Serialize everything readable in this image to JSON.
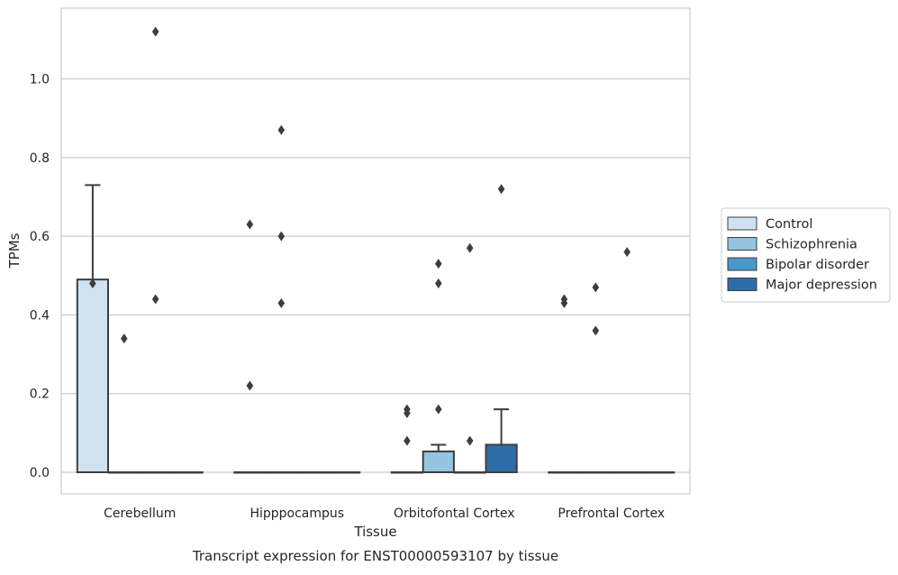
{
  "chart_data": {
    "type": "box",
    "xlabel": "Tissue",
    "ylabel": "TPMs",
    "caption": "Transcript expression for ENST00000593107 by tissue",
    "ylim": [
      -0.055,
      1.18
    ],
    "yticks": [
      0.0,
      0.2,
      0.4,
      0.6,
      0.8,
      1.0
    ],
    "ytick_labels": [
      "0.0",
      "0.2",
      "0.4",
      "0.6",
      "0.8",
      "1.0"
    ],
    "grid": "horizontal",
    "legend_position": "right",
    "categories": [
      "Cerebellum",
      "Hipppocampus",
      "Orbitofontal Cortex",
      "Prefrontal Cortex"
    ],
    "series": [
      {
        "name": "Control",
        "color": "#d0e1f2",
        "boxes": [
          {
            "q1": 0,
            "median": 0,
            "q3": 0.49,
            "whisker_low": 0,
            "whisker_high": 0.73,
            "outliers": [
              0.48
            ]
          },
          {
            "q1": 0,
            "median": 0,
            "q3": 0,
            "whisker_low": 0,
            "whisker_high": 0,
            "outliers": [
              0.63,
              0.22
            ]
          },
          {
            "q1": 0,
            "median": 0,
            "q3": 0,
            "whisker_low": 0,
            "whisker_high": 0,
            "outliers": [
              0.16,
              0.15,
              0.08
            ]
          },
          {
            "q1": 0,
            "median": 0,
            "q3": 0,
            "whisker_low": 0,
            "whisker_high": 0,
            "outliers": [
              0.44,
              0.43
            ]
          }
        ]
      },
      {
        "name": "Schizophrenia",
        "color": "#94c4df",
        "boxes": [
          {
            "q1": 0,
            "median": 0,
            "q3": 0,
            "whisker_low": 0,
            "whisker_high": 0,
            "outliers": [
              0.34
            ]
          },
          {
            "q1": 0,
            "median": 0,
            "q3": 0,
            "whisker_low": 0,
            "whisker_high": 0,
            "outliers": [
              0.87,
              0.6,
              0.43
            ]
          },
          {
            "q1": 0,
            "median": 0,
            "q3": 0.053,
            "whisker_low": 0,
            "whisker_high": 0.07,
            "outliers": [
              0.53,
              0.48,
              0.16
            ]
          },
          {
            "q1": 0,
            "median": 0,
            "q3": 0,
            "whisker_low": 0,
            "whisker_high": 0,
            "outliers": [
              0.47,
              0.36
            ]
          }
        ]
      },
      {
        "name": "Bipolar disorder",
        "color": "#4a98c9",
        "boxes": [
          {
            "q1": 0,
            "median": 0,
            "q3": 0,
            "whisker_low": 0,
            "whisker_high": 0,
            "outliers": [
              1.12,
              0.44
            ]
          },
          {
            "q1": 0,
            "median": 0,
            "q3": 0,
            "whisker_low": 0,
            "whisker_high": 0,
            "outliers": []
          },
          {
            "q1": 0,
            "median": 0,
            "q3": 0,
            "whisker_low": 0,
            "whisker_high": 0,
            "outliers": [
              0.57,
              0.08
            ]
          },
          {
            "q1": 0,
            "median": 0,
            "q3": 0,
            "whisker_low": 0,
            "whisker_high": 0,
            "outliers": [
              0.56
            ]
          }
        ]
      },
      {
        "name": "Major depression",
        "color": "#2e6ea8",
        "boxes": [
          {
            "q1": 0,
            "median": 0,
            "q3": 0,
            "whisker_low": 0,
            "whisker_high": 0,
            "outliers": []
          },
          {
            "q1": 0,
            "median": 0,
            "q3": 0,
            "whisker_low": 0,
            "whisker_high": 0,
            "outliers": []
          },
          {
            "q1": 0,
            "median": 0,
            "q3": 0.07,
            "whisker_low": 0,
            "whisker_high": 0.16,
            "outliers": [
              0.72
            ]
          },
          {
            "q1": 0,
            "median": 0,
            "q3": 0,
            "whisker_low": 0,
            "whisker_high": 0,
            "outliers": []
          }
        ]
      }
    ]
  }
}
